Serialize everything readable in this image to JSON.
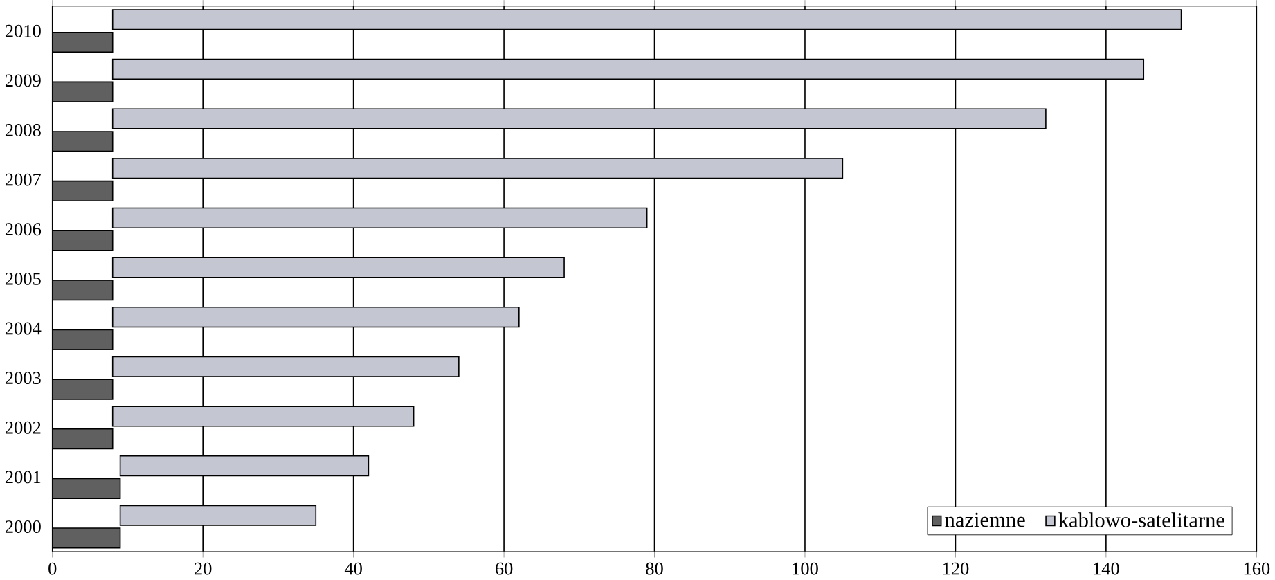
{
  "chart_data": {
    "type": "bar",
    "orientation": "horizontal",
    "stacked": true,
    "categories": [
      "2010",
      "2009",
      "2008",
      "2007",
      "2006",
      "2005",
      "2004",
      "2003",
      "2002",
      "2001",
      "2000"
    ],
    "series": [
      {
        "name": "naziemne",
        "color": "#606060",
        "values": [
          8,
          8,
          8,
          8,
          8,
          8,
          8,
          8,
          8,
          9,
          9
        ]
      },
      {
        "name": "kablowo-satelitarne",
        "color": "#c4c7d2",
        "values": [
          142,
          137,
          124,
          97,
          71,
          60,
          54,
          46,
          40,
          33,
          26
        ]
      }
    ],
    "xlim": [
      0,
      160
    ],
    "xticks": [
      0,
      20,
      40,
      60,
      80,
      100,
      120,
      140,
      160
    ],
    "grid": "x",
    "legend": "bottom right"
  }
}
